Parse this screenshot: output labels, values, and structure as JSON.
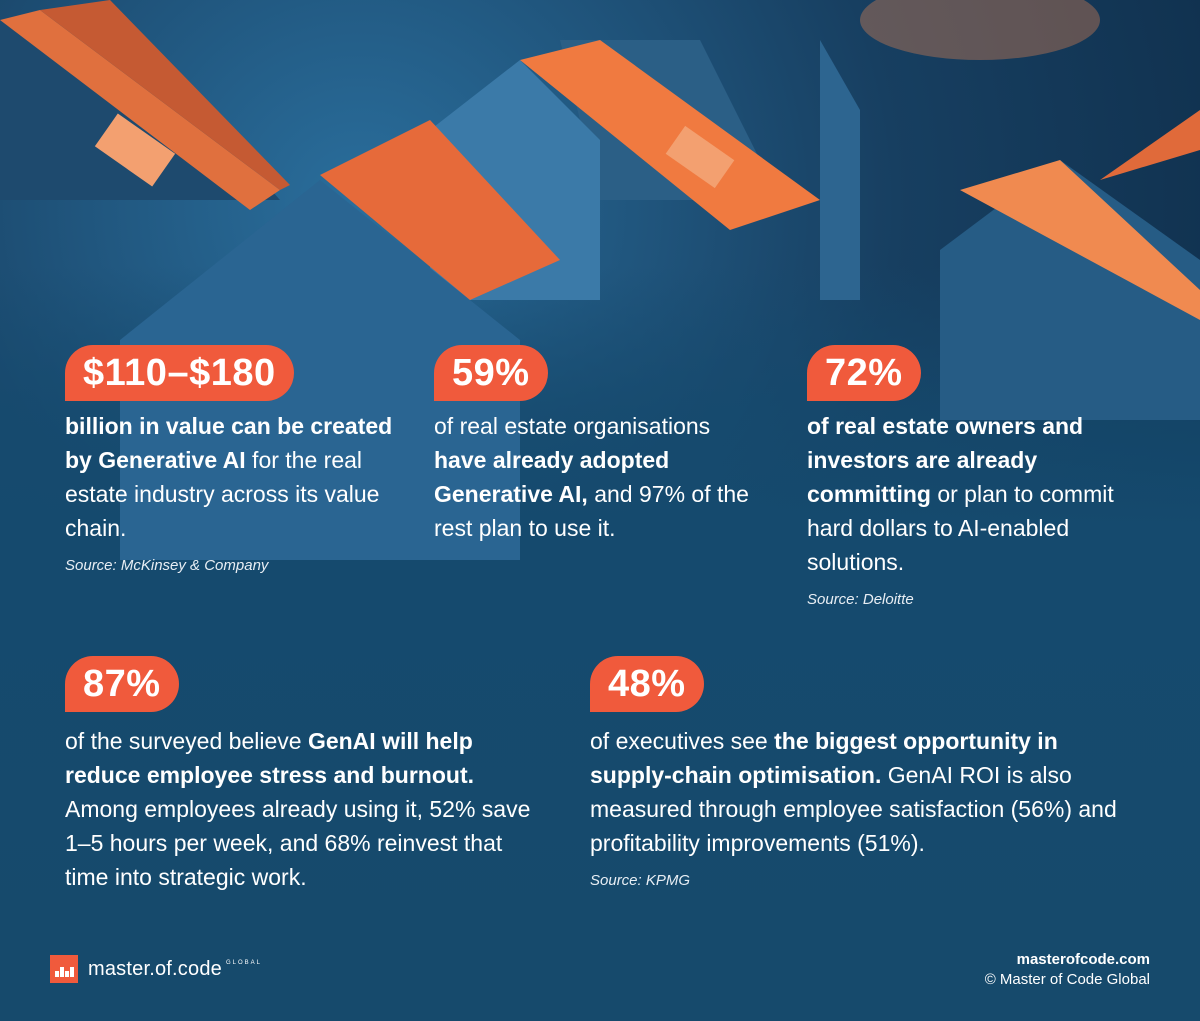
{
  "stats": [
    {
      "value": "$110–$180",
      "text_bold_1": "billion in value can be created by Generative AI",
      "text_plain_1": " for the real estate industry across its value chain.",
      "source": "Source: McKinsey & Company"
    },
    {
      "value": "59%",
      "text_plain_1": "of real estate organisations ",
      "text_bold_1": "have already adopted Generative AI,",
      "text_plain_2": " and 97% of the rest plan to use it."
    },
    {
      "value": "72%",
      "text_bold_1": "of real estate owners and investors are already committing",
      "text_plain_1": " or plan to commit hard dollars to AI-enabled solutions.",
      "source": "Source: Deloitte"
    },
    {
      "value": "87%",
      "text_plain_1": "of the surveyed believe ",
      "text_bold_1": "GenAI will help reduce employee stress and burnout.",
      "text_plain_2": " Among employees already using it, 52% save 1–5 hours per week, and 68% reinvest that time into strategic work."
    },
    {
      "value": "48%",
      "text_plain_1": "of executives see ",
      "text_bold_1": "the biggest opportunity in supply-chain optimisation.",
      "text_plain_2": " GenAI ROI is also measured through employee satisfaction (56%) and profitability improvements (51%).",
      "source": "Source: KPMG"
    }
  ],
  "footer": {
    "logo_text": "master.of.code",
    "logo_sub": "GLOBAL",
    "site": "masterofcode.com",
    "copyright": "© Master of Code Global"
  },
  "colors": {
    "accent": "#f05a3c",
    "background": "#154a6e"
  }
}
